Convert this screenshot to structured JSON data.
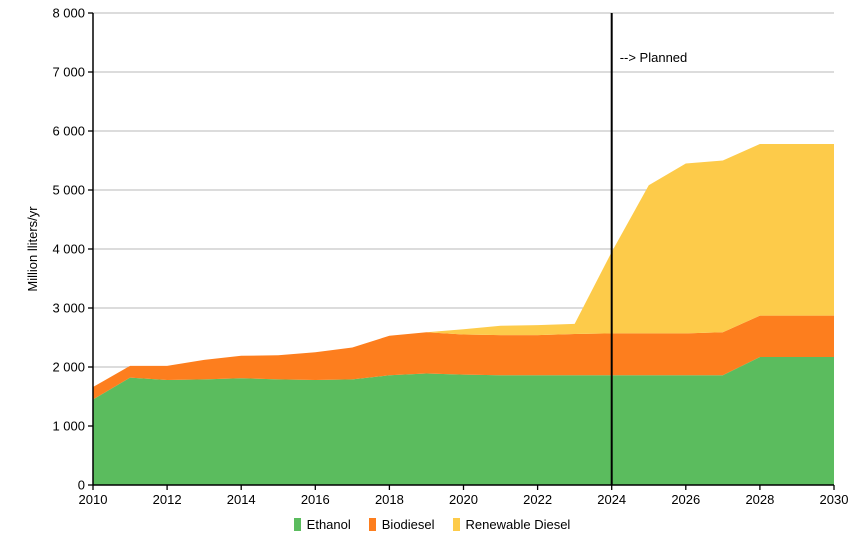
{
  "chart_data": {
    "type": "area",
    "stacked": true,
    "title": "",
    "xlabel": "",
    "ylabel": "Million lliters/yr",
    "x": [
      2010,
      2011,
      2012,
      2013,
      2014,
      2015,
      2016,
      2017,
      2018,
      2019,
      2020,
      2021,
      2022,
      2023,
      2024,
      2025,
      2026,
      2027,
      2028,
      2029,
      2030
    ],
    "series": [
      {
        "name": "Ethanol",
        "color": "#5BBC5E",
        "values": [
          1450,
          1820,
          1780,
          1790,
          1810,
          1790,
          1780,
          1790,
          1860,
          1890,
          1870,
          1860,
          1860,
          1860,
          1860,
          1860,
          1860,
          1860,
          2170,
          2170,
          2170
        ]
      },
      {
        "name": "Biodiesel",
        "color": "#FD7E1E",
        "values": [
          210,
          200,
          240,
          330,
          380,
          410,
          470,
          540,
          670,
          700,
          680,
          680,
          680,
          700,
          710,
          710,
          710,
          730,
          700,
          700,
          700
        ]
      },
      {
        "name": "Renewable Diesel",
        "color": "#FDCB4A",
        "values": [
          0,
          0,
          0,
          0,
          0,
          0,
          0,
          0,
          0,
          0,
          90,
          160,
          170,
          170,
          1380,
          2510,
          2880,
          2910,
          2910,
          2910,
          2910
        ]
      }
    ],
    "ylim": [
      0,
      8000
    ],
    "ytick_step": 1000,
    "ytick_labels": [
      "0",
      "1 000",
      "2 000",
      "3 000",
      "4 000",
      "5 000",
      "6 000",
      "7 000",
      "8 000"
    ],
    "xtick_years": [
      2010,
      2012,
      2014,
      2016,
      2018,
      2020,
      2022,
      2024,
      2026,
      2028,
      2030
    ],
    "grid": true,
    "legend_position": "bottom",
    "annotation": {
      "type": "vline",
      "x": 2024,
      "label": "--> Planned"
    },
    "colors": {
      "grid": "#C6C6C6",
      "axis": "#000000",
      "annotation_line": "#000000",
      "text": "#000000",
      "background": "#FFFFFF"
    }
  }
}
